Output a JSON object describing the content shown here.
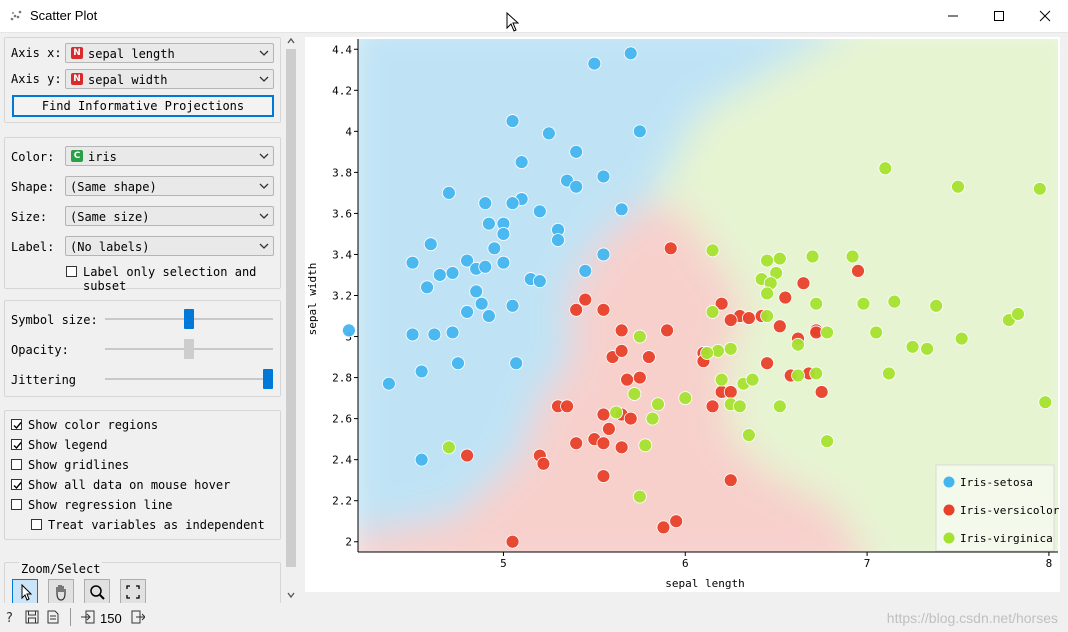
{
  "window": {
    "title": "Scatter Plot"
  },
  "axis": {
    "x_label": "Axis x:",
    "x_value": "sepal length",
    "x_icon": "N",
    "y_label": "Axis y:",
    "y_value": "sepal width",
    "y_icon": "N",
    "find_button": "Find Informative Projections"
  },
  "attributes": {
    "color_label": "Color:",
    "color_value": "iris",
    "color_icon": "C",
    "shape_label": "Shape:",
    "shape_value": "(Same shape)",
    "size_label": "Size:",
    "size_value": "(Same size)",
    "label_label": "Label:",
    "label_value": "(No labels)",
    "label_only_selection": "Label only selection and subset"
  },
  "sliders": {
    "symbol_size_label": "Symbol size:",
    "symbol_size": 0.5,
    "opacity_label": "Opacity:",
    "opacity": 0.5,
    "jittering_label": "Jittering",
    "jittering": 1.0
  },
  "options": [
    {
      "label": "Show color regions",
      "checked": true
    },
    {
      "label": "Show legend",
      "checked": true
    },
    {
      "label": "Show gridlines",
      "checked": false
    },
    {
      "label": "Show all data on mouse hover",
      "checked": true
    },
    {
      "label": "Show regression line",
      "checked": false
    },
    {
      "label": "Treat variables as independent",
      "checked": false
    }
  ],
  "zoom": {
    "title": "Zoom/Select"
  },
  "status": {
    "count": "150"
  },
  "watermark": "https://blog.csdn.net/horses",
  "colors": {
    "setosa": "#45b5ef",
    "versicolor": "#e8402a",
    "virginica": "#a5e22f",
    "accent": "#0078d7"
  },
  "chart_data": {
    "type": "scatter",
    "xlabel": "sepal length",
    "ylabel": "sepal width",
    "xlim": [
      4.2,
      8.05
    ],
    "ylim": [
      1.95,
      4.45
    ],
    "xticks": [
      5,
      6,
      7,
      8
    ],
    "yticks": [
      2,
      2.2,
      2.4,
      2.6,
      2.8,
      3,
      3.2,
      3.4,
      3.6,
      3.8,
      4,
      4.2,
      4.4
    ],
    "legend_position": "bottom-right",
    "series": [
      {
        "name": "Iris-setosa",
        "color": "#45b5ef",
        "points": [
          [
            5.5,
            4.33
          ],
          [
            5.7,
            4.38
          ],
          [
            5.05,
            4.05
          ],
          [
            5.25,
            3.99
          ],
          [
            5.75,
            4.0
          ],
          [
            5.4,
            3.9
          ],
          [
            5.1,
            3.85
          ],
          [
            4.7,
            3.7
          ],
          [
            5.35,
            3.76
          ],
          [
            5.55,
            3.78
          ],
          [
            5.4,
            3.73
          ],
          [
            5.1,
            3.67
          ],
          [
            4.9,
            3.65
          ],
          [
            5.05,
            3.65
          ],
          [
            5.2,
            3.61
          ],
          [
            5.65,
            3.62
          ],
          [
            4.92,
            3.55
          ],
          [
            5.0,
            3.55
          ],
          [
            5.3,
            3.52
          ],
          [
            5.0,
            3.5
          ],
          [
            5.3,
            3.47
          ],
          [
            4.6,
            3.45
          ],
          [
            4.95,
            3.43
          ],
          [
            4.5,
            3.36
          ],
          [
            4.8,
            3.37
          ],
          [
            4.85,
            3.33
          ],
          [
            4.9,
            3.34
          ],
          [
            5.0,
            3.36
          ],
          [
            4.72,
            3.31
          ],
          [
            4.65,
            3.3
          ],
          [
            5.45,
            3.32
          ],
          [
            5.55,
            3.4
          ],
          [
            5.15,
            3.28
          ],
          [
            5.2,
            3.27
          ],
          [
            4.58,
            3.24
          ],
          [
            4.85,
            3.22
          ],
          [
            4.88,
            3.16
          ],
          [
            5.05,
            3.15
          ],
          [
            4.92,
            3.1
          ],
          [
            4.8,
            3.12
          ],
          [
            4.15,
            3.03
          ],
          [
            4.5,
            3.01
          ],
          [
            4.62,
            3.01
          ],
          [
            4.72,
            3.02
          ],
          [
            4.55,
            2.83
          ],
          [
            4.37,
            2.77
          ],
          [
            4.75,
            2.87
          ],
          [
            5.07,
            2.87
          ],
          [
            4.55,
            2.4
          ]
        ]
      },
      {
        "name": "Iris-versicolor",
        "color": "#e8402a",
        "points": [
          [
            5.92,
            3.43
          ],
          [
            5.45,
            3.18
          ],
          [
            5.55,
            3.13
          ],
          [
            5.4,
            3.13
          ],
          [
            5.65,
            3.03
          ],
          [
            5.9,
            3.03
          ],
          [
            6.2,
            3.16
          ],
          [
            6.3,
            3.1
          ],
          [
            6.25,
            3.08
          ],
          [
            6.35,
            3.09
          ],
          [
            6.42,
            3.1
          ],
          [
            6.55,
            3.19
          ],
          [
            6.65,
            3.26
          ],
          [
            6.52,
            3.05
          ],
          [
            6.62,
            2.99
          ],
          [
            6.72,
            3.03
          ],
          [
            6.72,
            3.02
          ],
          [
            6.95,
            3.32
          ],
          [
            6.1,
            2.92
          ],
          [
            6.1,
            2.88
          ],
          [
            5.6,
            2.9
          ],
          [
            5.65,
            2.93
          ],
          [
            5.8,
            2.9
          ],
          [
            5.75,
            2.8
          ],
          [
            5.68,
            2.79
          ],
          [
            6.2,
            2.73
          ],
          [
            6.25,
            2.73
          ],
          [
            6.45,
            2.87
          ],
          [
            6.58,
            2.81
          ],
          [
            6.68,
            2.82
          ],
          [
            6.75,
            2.73
          ],
          [
            5.3,
            2.66
          ],
          [
            5.35,
            2.66
          ],
          [
            6.15,
            2.66
          ],
          [
            5.55,
            2.62
          ],
          [
            5.65,
            2.62
          ],
          [
            5.7,
            2.6
          ],
          [
            5.58,
            2.55
          ],
          [
            5.5,
            2.5
          ],
          [
            5.55,
            2.48
          ],
          [
            5.65,
            2.46
          ],
          [
            5.4,
            2.48
          ],
          [
            5.2,
            2.42
          ],
          [
            5.22,
            2.38
          ],
          [
            4.8,
            2.42
          ],
          [
            5.55,
            2.32
          ],
          [
            6.25,
            2.3
          ],
          [
            5.95,
            2.1
          ],
          [
            5.88,
            2.07
          ],
          [
            5.05,
            2.0
          ]
        ]
      },
      {
        "name": "Iris-virginica",
        "color": "#a5e22f",
        "points": [
          [
            7.1,
            3.82
          ],
          [
            7.5,
            3.73
          ],
          [
            7.95,
            3.72
          ],
          [
            6.15,
            3.42
          ],
          [
            6.52,
            3.38
          ],
          [
            6.7,
            3.39
          ],
          [
            6.92,
            3.39
          ],
          [
            6.45,
            3.37
          ],
          [
            6.5,
            3.31
          ],
          [
            6.42,
            3.28
          ],
          [
            6.47,
            3.26
          ],
          [
            6.45,
            3.21
          ],
          [
            6.72,
            3.16
          ],
          [
            6.98,
            3.16
          ],
          [
            7.15,
            3.17
          ],
          [
            7.38,
            3.15
          ],
          [
            6.15,
            3.12
          ],
          [
            6.45,
            3.1
          ],
          [
            7.78,
            3.08
          ],
          [
            7.83,
            3.11
          ],
          [
            6.78,
            3.02
          ],
          [
            7.05,
            3.02
          ],
          [
            5.75,
            3.0
          ],
          [
            6.62,
            2.96
          ],
          [
            6.18,
            2.93
          ],
          [
            6.25,
            2.94
          ],
          [
            6.12,
            2.92
          ],
          [
            7.25,
            2.95
          ],
          [
            7.33,
            2.94
          ],
          [
            7.52,
            2.99
          ],
          [
            6.2,
            2.79
          ],
          [
            6.32,
            2.77
          ],
          [
            6.37,
            2.79
          ],
          [
            6.72,
            2.82
          ],
          [
            6.62,
            2.81
          ],
          [
            7.12,
            2.82
          ],
          [
            5.72,
            2.72
          ],
          [
            6.0,
            2.7
          ],
          [
            5.85,
            2.67
          ],
          [
            6.25,
            2.67
          ],
          [
            6.3,
            2.66
          ],
          [
            6.52,
            2.66
          ],
          [
            7.98,
            2.68
          ],
          [
            5.62,
            2.63
          ],
          [
            5.82,
            2.6
          ],
          [
            6.35,
            2.52
          ],
          [
            6.78,
            2.49
          ],
          [
            5.78,
            2.47
          ],
          [
            4.7,
            2.46
          ],
          [
            5.75,
            2.22
          ]
        ]
      }
    ]
  }
}
